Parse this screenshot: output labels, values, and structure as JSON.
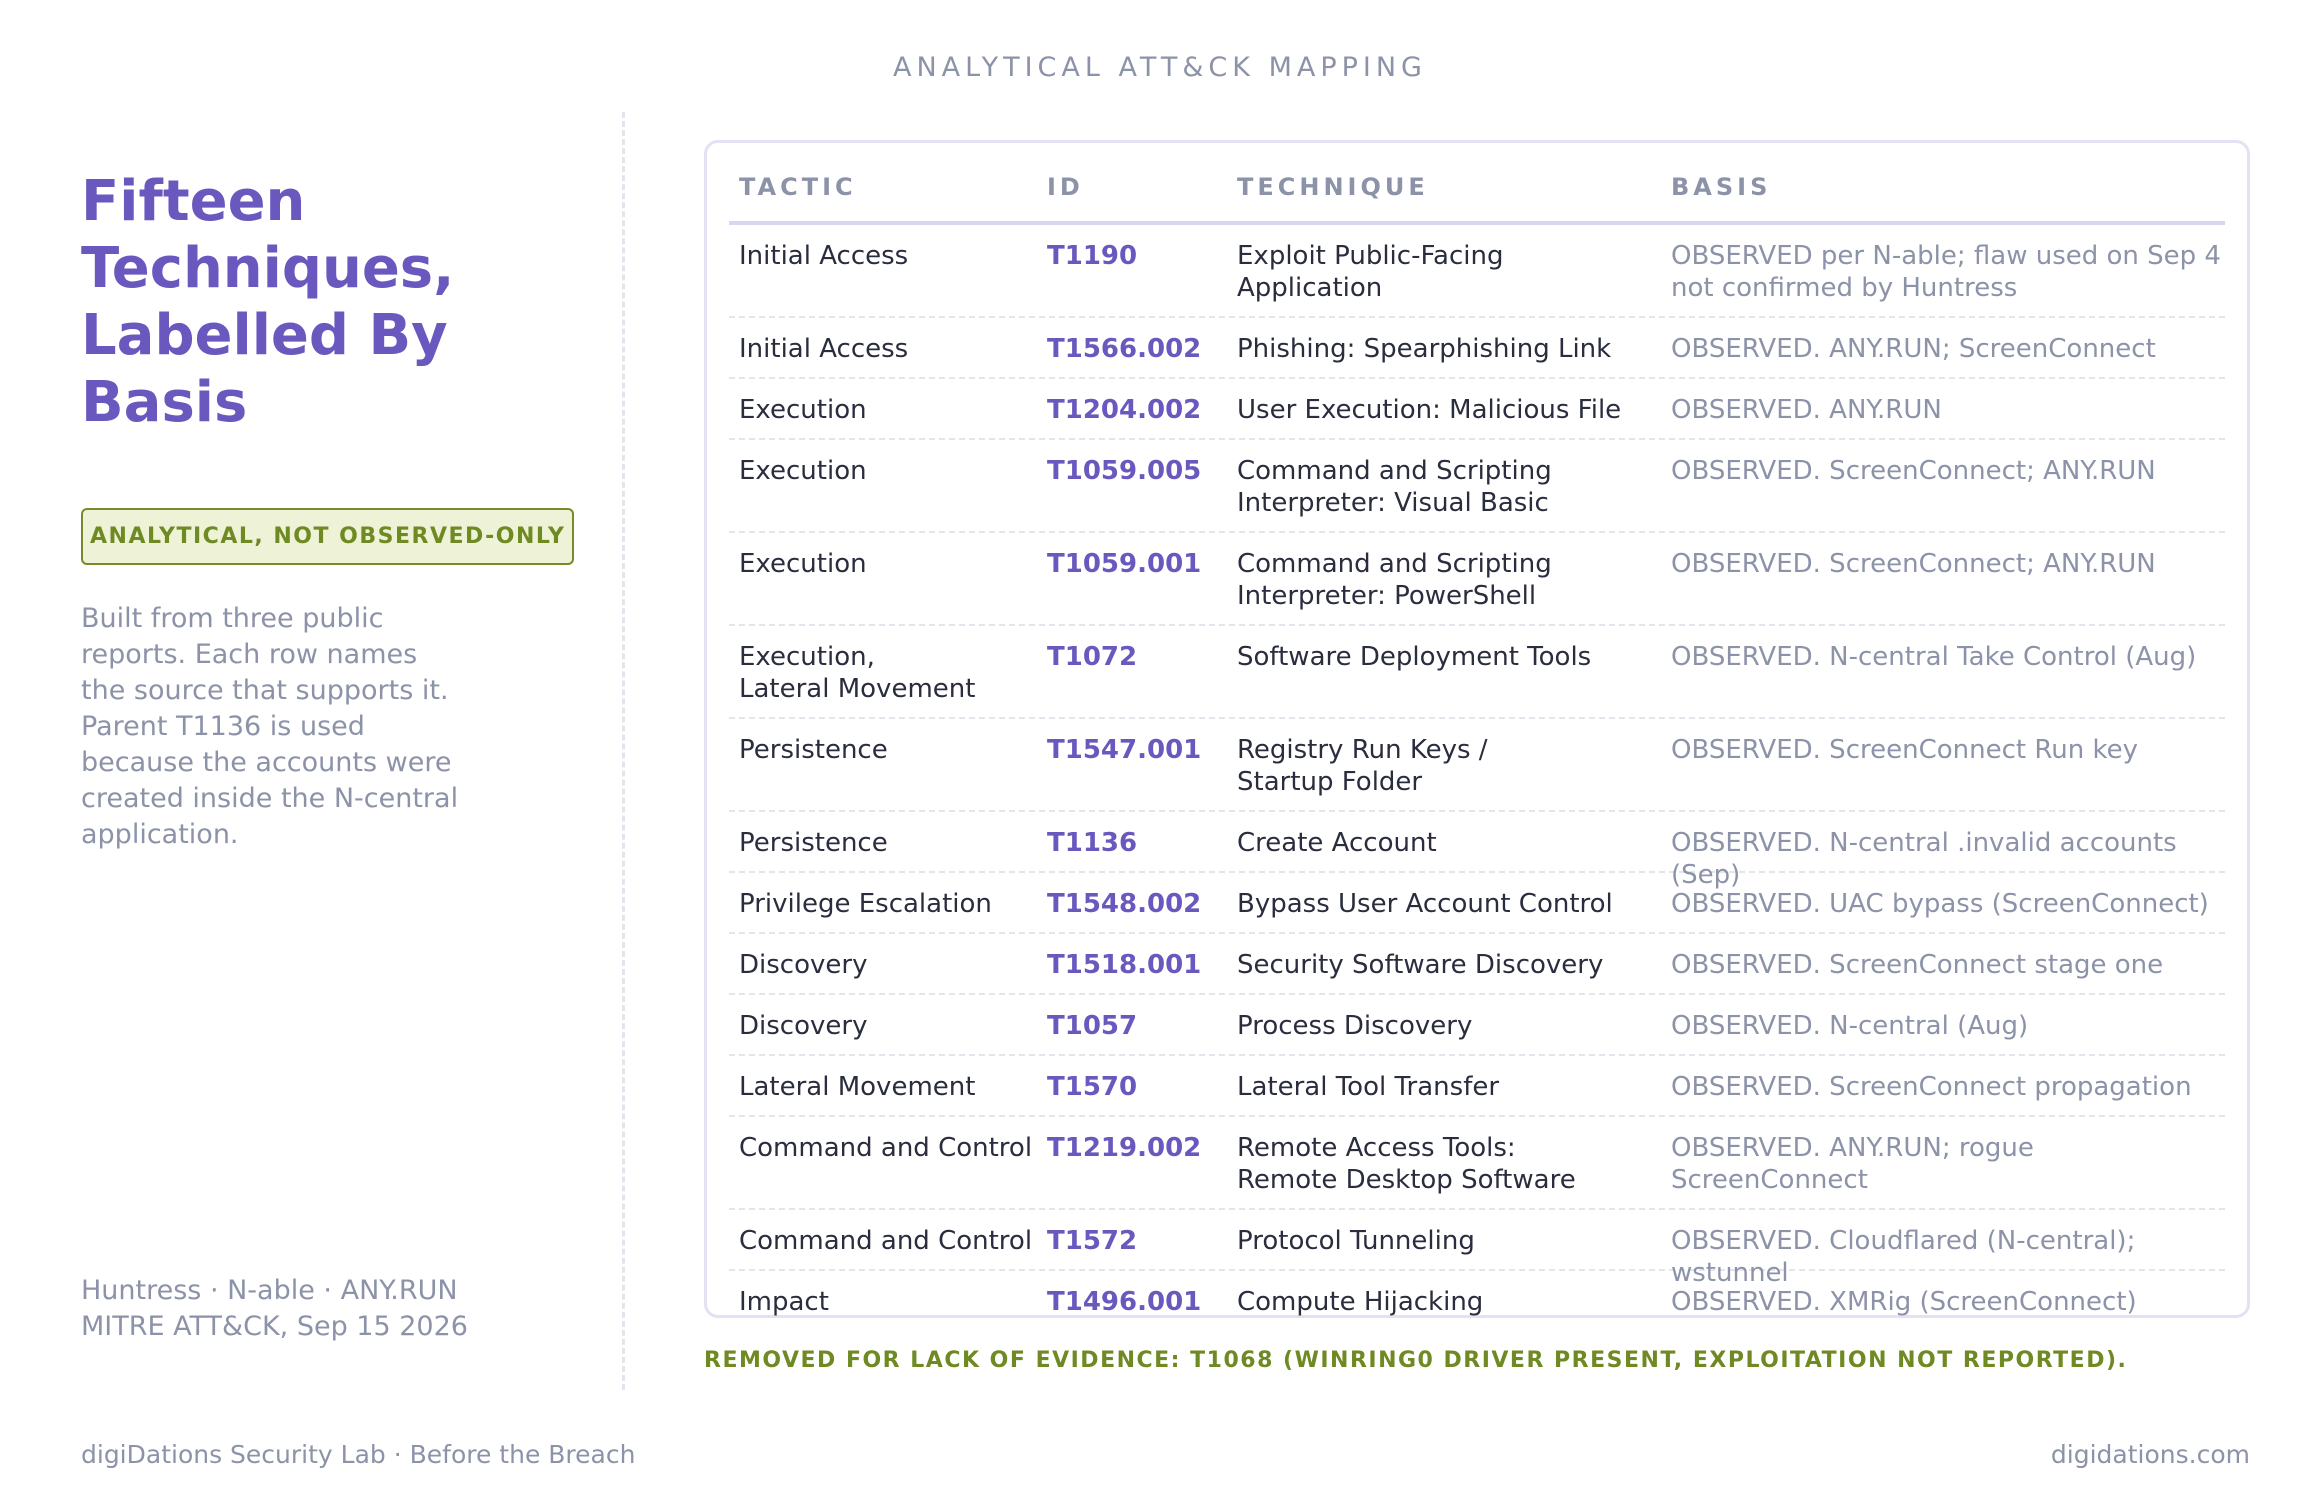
{
  "header": {
    "label": "ANALYTICAL ATT&CK MAPPING"
  },
  "left": {
    "title": "Fifteen Techniques, Labelled By Basis",
    "badge": "ANALYTICAL, NOT OBSERVED-ONLY",
    "description": "Built from three public reports. Each row names the source that supports it. Parent T1136 is used because the accounts were created inside the N-central application.",
    "sources_line1": "Huntress · N-able · ANY.RUN",
    "sources_line2": "MITRE ATT&CK, Sep 15 2026"
  },
  "table": {
    "columns": [
      "TACTIC",
      "ID",
      "TECHNIQUE",
      "BASIS"
    ],
    "rows": [
      {
        "tactic": "Initial Access",
        "id": "T1190",
        "technique": "Exploit Public-Facing\nApplication",
        "basis": "OBSERVED per N-able; flaw used on Sep 4\nnot confirmed by Huntress"
      },
      {
        "tactic": "Initial Access",
        "id": "T1566.002",
        "technique": "Phishing: Spearphishing Link",
        "basis": "OBSERVED. ANY.RUN; ScreenConnect"
      },
      {
        "tactic": "Execution",
        "id": "T1204.002",
        "technique": "User Execution: Malicious File",
        "basis": "OBSERVED. ANY.RUN"
      },
      {
        "tactic": "Execution",
        "id": "T1059.005",
        "technique": "Command and Scripting\nInterpreter: Visual Basic",
        "basis": "OBSERVED. ScreenConnect; ANY.RUN"
      },
      {
        "tactic": "Execution",
        "id": "T1059.001",
        "technique": "Command and Scripting\nInterpreter: PowerShell",
        "basis": "OBSERVED. ScreenConnect; ANY.RUN"
      },
      {
        "tactic": "Execution,\nLateral Movement",
        "id": "T1072",
        "technique": "Software Deployment Tools",
        "basis": "OBSERVED. N-central Take Control (Aug)"
      },
      {
        "tactic": "Persistence",
        "id": "T1547.001",
        "technique": "Registry Run Keys /\nStartup Folder",
        "basis": "OBSERVED. ScreenConnect Run key"
      },
      {
        "tactic": "Persistence",
        "id": "T1136",
        "technique": "Create Account",
        "basis": "OBSERVED. N-central .invalid accounts (Sep)"
      },
      {
        "tactic": "Privilege Escalation",
        "id": "T1548.002",
        "technique": "Bypass User Account Control",
        "basis": "OBSERVED. UAC bypass (ScreenConnect)"
      },
      {
        "tactic": "Discovery",
        "id": "T1518.001",
        "technique": "Security Software Discovery",
        "basis": "OBSERVED. ScreenConnect stage one"
      },
      {
        "tactic": "Discovery",
        "id": "T1057",
        "technique": "Process Discovery",
        "basis": "OBSERVED. N-central (Aug)"
      },
      {
        "tactic": "Lateral Movement",
        "id": "T1570",
        "technique": "Lateral Tool Transfer",
        "basis": "OBSERVED. ScreenConnect propagation"
      },
      {
        "tactic": "Command and Control",
        "id": "T1219.002",
        "technique": "Remote Access Tools:\nRemote Desktop Software",
        "basis": "OBSERVED. ANY.RUN; rogue ScreenConnect"
      },
      {
        "tactic": "Command and Control",
        "id": "T1572",
        "technique": "Protocol Tunneling",
        "basis": "OBSERVED. Cloudflared (N-central); wstunnel"
      },
      {
        "tactic": "Impact",
        "id": "T1496.001",
        "technique": "Compute Hijacking",
        "basis": "OBSERVED. XMRig (ScreenConnect)"
      }
    ]
  },
  "removed_note": "REMOVED FOR LACK OF EVIDENCE: T1068 (WINRING0 DRIVER PRESENT, EXPLOITATION NOT REPORTED).",
  "footer": {
    "left": "digiDations Security Lab · Before the Breach",
    "right": "digidations.com"
  },
  "colors": {
    "accent": "#6a58bf",
    "olive": "#6f8a22",
    "muted": "#8c93a8"
  }
}
